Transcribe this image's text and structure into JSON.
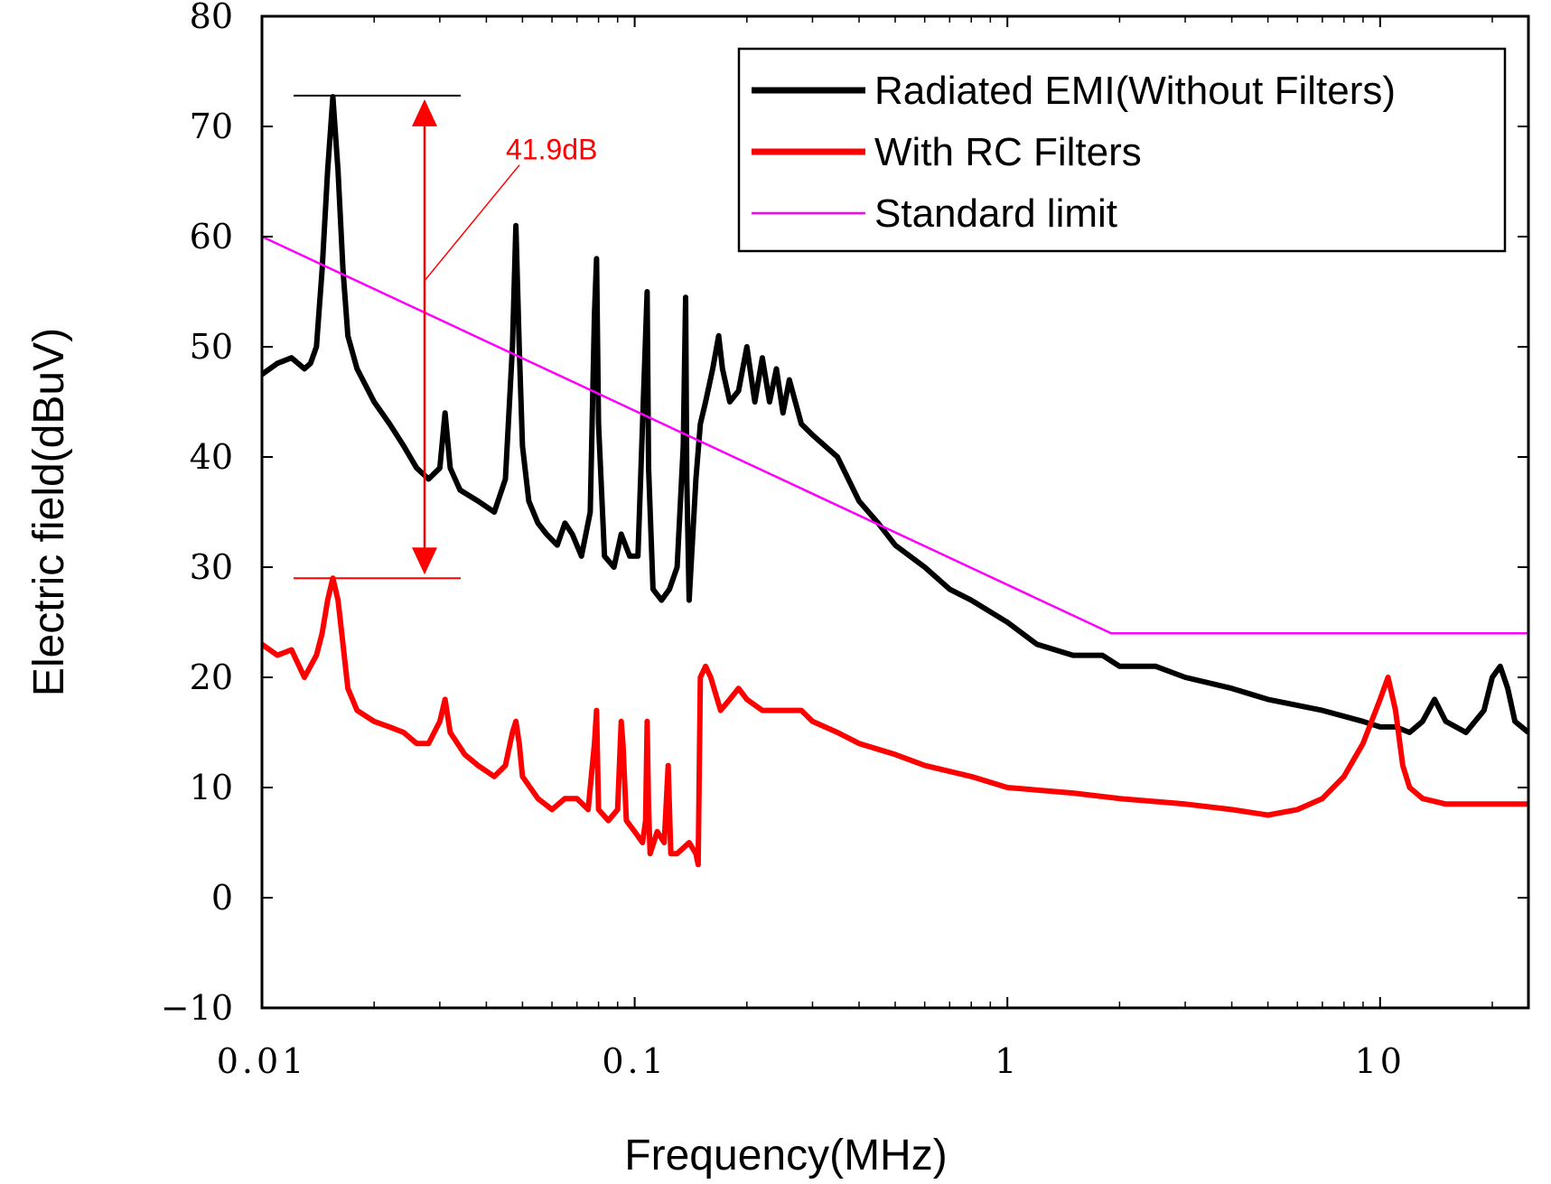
{
  "chart_data": {
    "type": "line",
    "xscale": "log",
    "xlim": [
      0.01,
      25
    ],
    "ylim": [
      -10,
      80
    ],
    "xlabel": "Frequency(MHz)",
    "ylabel": "Electric field(dBuV)",
    "x_ticks": [
      {
        "value": 0.01,
        "label": "0.01"
      },
      {
        "value": 0.1,
        "label": "0.1"
      },
      {
        "value": 1,
        "label": "1"
      },
      {
        "value": 10,
        "label": "10"
      }
    ],
    "y_ticks": [
      {
        "value": -10,
        "label": "−10"
      },
      {
        "value": 0,
        "label": "0"
      },
      {
        "value": 10,
        "label": "10"
      },
      {
        "value": 20,
        "label": "20"
      },
      {
        "value": 30,
        "label": "30"
      },
      {
        "value": 40,
        "label": "40"
      },
      {
        "value": 50,
        "label": "50"
      },
      {
        "value": 60,
        "label": "60"
      },
      {
        "value": 70,
        "label": "70"
      },
      {
        "value": 80,
        "label": "80"
      }
    ],
    "legend_position": "top-right",
    "series": [
      {
        "name": "Radiated EMI(Without Filters)",
        "color": "#000000",
        "x": [
          0.01,
          0.011,
          0.012,
          0.013,
          0.0135,
          0.014,
          0.0145,
          0.015,
          0.0155,
          0.016,
          0.0165,
          0.017,
          0.018,
          0.02,
          0.022,
          0.024,
          0.026,
          0.028,
          0.03,
          0.031,
          0.032,
          0.034,
          0.038,
          0.042,
          0.045,
          0.047,
          0.048,
          0.049,
          0.05,
          0.052,
          0.055,
          0.058,
          0.062,
          0.065,
          0.068,
          0.072,
          0.076,
          0.078,
          0.079,
          0.08,
          0.083,
          0.088,
          0.092,
          0.097,
          0.102,
          0.106,
          0.108,
          0.109,
          0.112,
          0.118,
          0.124,
          0.13,
          0.135,
          0.137,
          0.138,
          0.14,
          0.146,
          0.15,
          0.155,
          0.162,
          0.168,
          0.172,
          0.18,
          0.19,
          0.2,
          0.21,
          0.22,
          0.23,
          0.24,
          0.25,
          0.26,
          0.28,
          0.3,
          0.35,
          0.4,
          0.45,
          0.5,
          0.6,
          0.7,
          0.8,
          1.0,
          1.2,
          1.5,
          1.8,
          2.0,
          2.5,
          3.0,
          4.0,
          5.0,
          7.0,
          9.0,
          10.0,
          11.0,
          12.0,
          13.0,
          14.0,
          15.0,
          17.0,
          19.0,
          20.0,
          21.0,
          22.0,
          23.0,
          25.0
        ],
        "y": [
          47.5,
          48.5,
          49,
          48,
          48.5,
          50,
          57,
          66,
          72.7,
          66,
          57,
          51,
          48,
          45,
          43,
          41,
          39,
          38,
          39,
          44,
          39,
          37,
          36,
          35,
          38,
          50,
          61,
          50,
          41,
          36,
          34,
          33,
          32,
          34,
          33,
          31,
          35,
          53,
          58,
          43,
          31,
          30,
          33,
          31,
          31,
          47,
          55,
          39,
          28,
          27,
          28,
          30,
          41,
          54.5,
          38,
          27,
          38,
          43,
          45,
          48,
          51,
          48,
          45,
          46,
          50,
          45,
          49,
          45,
          48,
          44,
          47,
          43,
          42,
          40,
          36,
          34,
          32,
          30,
          28,
          27,
          25,
          23,
          22,
          22,
          21,
          21,
          20,
          19,
          18,
          17,
          16,
          15.5,
          15.5,
          15,
          16,
          18,
          16,
          15,
          17,
          20,
          21,
          19,
          16,
          15
        ]
      },
      {
        "name": "With RC Filters",
        "color": "#ff0000",
        "x": [
          0.01,
          0.011,
          0.012,
          0.013,
          0.014,
          0.0145,
          0.015,
          0.0155,
          0.016,
          0.0165,
          0.017,
          0.018,
          0.02,
          0.022,
          0.024,
          0.026,
          0.028,
          0.03,
          0.031,
          0.032,
          0.035,
          0.038,
          0.042,
          0.045,
          0.047,
          0.048,
          0.049,
          0.05,
          0.055,
          0.06,
          0.065,
          0.07,
          0.075,
          0.078,
          0.079,
          0.08,
          0.085,
          0.09,
          0.092,
          0.093,
          0.095,
          0.1,
          0.105,
          0.107,
          0.108,
          0.109,
          0.11,
          0.115,
          0.12,
          0.123,
          0.125,
          0.13,
          0.14,
          0.146,
          0.148,
          0.15,
          0.155,
          0.16,
          0.17,
          0.18,
          0.19,
          0.2,
          0.22,
          0.25,
          0.28,
          0.3,
          0.35,
          0.4,
          0.5,
          0.6,
          0.8,
          1.0,
          1.5,
          2.0,
          3.0,
          4.0,
          5.0,
          6.0,
          7.0,
          8.0,
          9.0,
          10.0,
          10.5,
          11.0,
          11.5,
          12.0,
          13.0,
          15.0,
          17.0,
          20.0,
          25.0
        ],
        "y": [
          23,
          22,
          22.5,
          20,
          22,
          24,
          27,
          29,
          27,
          23,
          19,
          17,
          16,
          15.5,
          15,
          14,
          14,
          16,
          18,
          15,
          13,
          12,
          11,
          12,
          15,
          16,
          14,
          11,
          9,
          8,
          9,
          9,
          8,
          14,
          17,
          8,
          7,
          8,
          16,
          14,
          7,
          6,
          5,
          7,
          16,
          8,
          4,
          6,
          5,
          12,
          4,
          4,
          5,
          4,
          3,
          20,
          21,
          20,
          17,
          18,
          19,
          18,
          17,
          17,
          17,
          16,
          15,
          14,
          13,
          12,
          11,
          10,
          9.5,
          9,
          8.5,
          8,
          7.5,
          8,
          9,
          11,
          14,
          18,
          20,
          17,
          12,
          10,
          9,
          8.5,
          8.5,
          8.5,
          8.5
        ]
      },
      {
        "name": "Standard limit",
        "color": "#ff00ff",
        "x": [
          0.01,
          1.9,
          25
        ],
        "y": [
          60,
          24,
          24
        ]
      }
    ],
    "annotations": [
      {
        "text": "41.9dB",
        "from_y": 29,
        "to_y": 72.8,
        "color": "#ff0000"
      }
    ]
  }
}
